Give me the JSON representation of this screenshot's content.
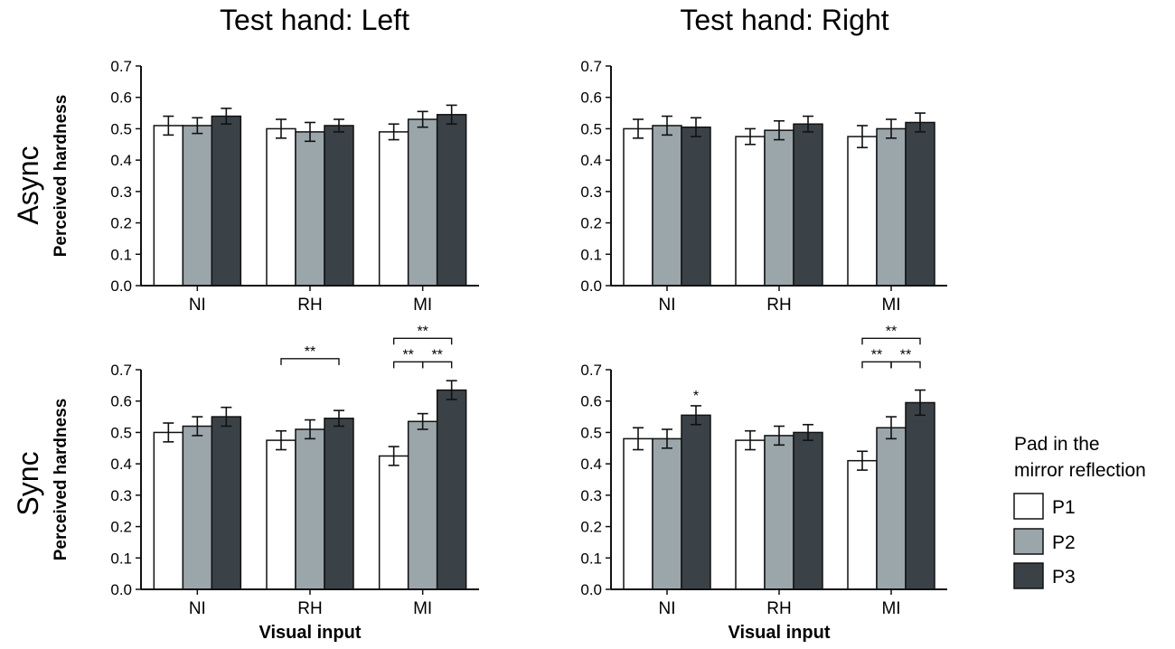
{
  "figure": {
    "col_titles": [
      "Test hand: Left",
      "Test hand: Right"
    ],
    "row_labels": [
      "Async",
      "Sync"
    ],
    "ylabel": "Perceived hardness",
    "xlabel": "Visual input",
    "legend": {
      "title_lines": [
        "Pad in the",
        "mirror reflection"
      ],
      "entries": [
        {
          "label": "P1",
          "color": "#ffffff"
        },
        {
          "label": "P2",
          "color": "#9ba6ab"
        },
        {
          "label": "P3",
          "color": "#3b4247"
        }
      ]
    }
  },
  "chart_data": [
    {
      "type": "bar",
      "title": "Test hand: Left",
      "row": "Async",
      "categories": [
        "NI",
        "RH",
        "MI"
      ],
      "series": [
        {
          "name": "P1",
          "values": [
            0.51,
            0.5,
            0.49
          ],
          "errors": [
            0.03,
            0.03,
            0.025
          ]
        },
        {
          "name": "P2",
          "values": [
            0.51,
            0.49,
            0.53
          ],
          "errors": [
            0.025,
            0.03,
            0.025
          ]
        },
        {
          "name": "P3",
          "values": [
            0.54,
            0.51,
            0.545
          ],
          "errors": [
            0.025,
            0.02,
            0.03
          ]
        }
      ],
      "ylim": [
        0,
        0.7
      ],
      "yticks": [
        "0.0",
        "0.1",
        "0.2",
        "0.3",
        "0.4",
        "0.5",
        "0.6",
        "0.7"
      ],
      "ylabel": "Perceived hardness",
      "xlabel": "",
      "annotations": []
    },
    {
      "type": "bar",
      "title": "Test hand: Right",
      "row": "Async",
      "categories": [
        "NI",
        "RH",
        "MI"
      ],
      "series": [
        {
          "name": "P1",
          "values": [
            0.5,
            0.475,
            0.475
          ],
          "errors": [
            0.03,
            0.025,
            0.035
          ]
        },
        {
          "name": "P2",
          "values": [
            0.51,
            0.495,
            0.5
          ],
          "errors": [
            0.03,
            0.03,
            0.03
          ]
        },
        {
          "name": "P3",
          "values": [
            0.505,
            0.515,
            0.52
          ],
          "errors": [
            0.03,
            0.025,
            0.03
          ]
        }
      ],
      "ylim": [
        0,
        0.7
      ],
      "yticks": [
        "0.0",
        "0.1",
        "0.2",
        "0.3",
        "0.4",
        "0.5",
        "0.6",
        "0.7"
      ],
      "ylabel": "",
      "xlabel": "",
      "annotations": []
    },
    {
      "type": "bar",
      "title": "",
      "row": "Sync",
      "categories": [
        "NI",
        "RH",
        "MI"
      ],
      "series": [
        {
          "name": "P1",
          "values": [
            0.5,
            0.475,
            0.425
          ],
          "errors": [
            0.03,
            0.03,
            0.03
          ]
        },
        {
          "name": "P2",
          "values": [
            0.52,
            0.51,
            0.535
          ],
          "errors": [
            0.03,
            0.03,
            0.025
          ]
        },
        {
          "name": "P3",
          "values": [
            0.55,
            0.545,
            0.635
          ],
          "errors": [
            0.03,
            0.025,
            0.03
          ]
        }
      ],
      "ylim": [
        0,
        0.7
      ],
      "yticks": [
        "0.0",
        "0.1",
        "0.2",
        "0.3",
        "0.4",
        "0.5",
        "0.6",
        "0.7"
      ],
      "ylabel": "Perceived hardness",
      "xlabel": "Visual input",
      "annotations": [
        {
          "cat": 1,
          "from": 0,
          "to": 2,
          "level": 0.735,
          "text": "**"
        },
        {
          "cat": 2,
          "from": 0,
          "to": 1,
          "level": 0.725,
          "text": "**"
        },
        {
          "cat": 2,
          "from": 1,
          "to": 2,
          "level": 0.725,
          "text": "**"
        },
        {
          "cat": 2,
          "from": 0,
          "to": 2,
          "level": 0.8,
          "text": "**"
        }
      ]
    },
    {
      "type": "bar",
      "title": "",
      "row": "Sync",
      "categories": [
        "NI",
        "RH",
        "MI"
      ],
      "series": [
        {
          "name": "P1",
          "values": [
            0.48,
            0.475,
            0.41
          ],
          "errors": [
            0.035,
            0.03,
            0.03
          ]
        },
        {
          "name": "P2",
          "values": [
            0.48,
            0.49,
            0.515
          ],
          "errors": [
            0.03,
            0.03,
            0.035
          ]
        },
        {
          "name": "P3",
          "values": [
            0.555,
            0.5,
            0.595
          ],
          "errors": [
            0.03,
            0.025,
            0.04
          ]
        }
      ],
      "ylim": [
        0,
        0.7
      ],
      "yticks": [
        "0.0",
        "0.1",
        "0.2",
        "0.3",
        "0.4",
        "0.5",
        "0.6",
        "0.7"
      ],
      "ylabel": "",
      "xlabel": "Visual input",
      "annotations": [
        {
          "cat": 0,
          "star_over": 2,
          "text": "*"
        },
        {
          "cat": 2,
          "from": 0,
          "to": 1,
          "level": 0.725,
          "text": "**"
        },
        {
          "cat": 2,
          "from": 1,
          "to": 2,
          "level": 0.725,
          "text": "**"
        },
        {
          "cat": 2,
          "from": 0,
          "to": 2,
          "level": 0.8,
          "text": "**"
        }
      ]
    }
  ]
}
